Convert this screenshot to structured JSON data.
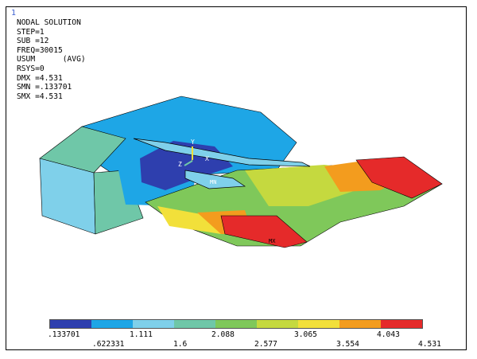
{
  "window_number": "1",
  "info": {
    "title": "NODAL SOLUTION",
    "lines": [
      "STEP=1",
      "SUB =12",
      "FREQ=30015",
      "USUM      (AVG)",
      "RSYS=0",
      "DMX =4.531",
      "SMN =.133701",
      "SMX =4.531"
    ]
  },
  "triad": {
    "y": "Y",
    "z": "Z",
    "x": "X"
  },
  "markers": {
    "min": "MN",
    "max": "MX"
  },
  "legend": {
    "colors": [
      "#2e3fae",
      "#1ea6e6",
      "#7fd0ea",
      "#6fc7a8",
      "#7fc85a",
      "#c5d93f",
      "#f2e03a",
      "#f39c1e",
      "#e52a2a"
    ],
    "top_labels": [
      ".133701",
      "1.111",
      "2.088",
      "3.065",
      "4.043"
    ],
    "bottom_labels": [
      ".622331",
      "1.6",
      "2.577",
      "3.554",
      "4.531"
    ]
  }
}
